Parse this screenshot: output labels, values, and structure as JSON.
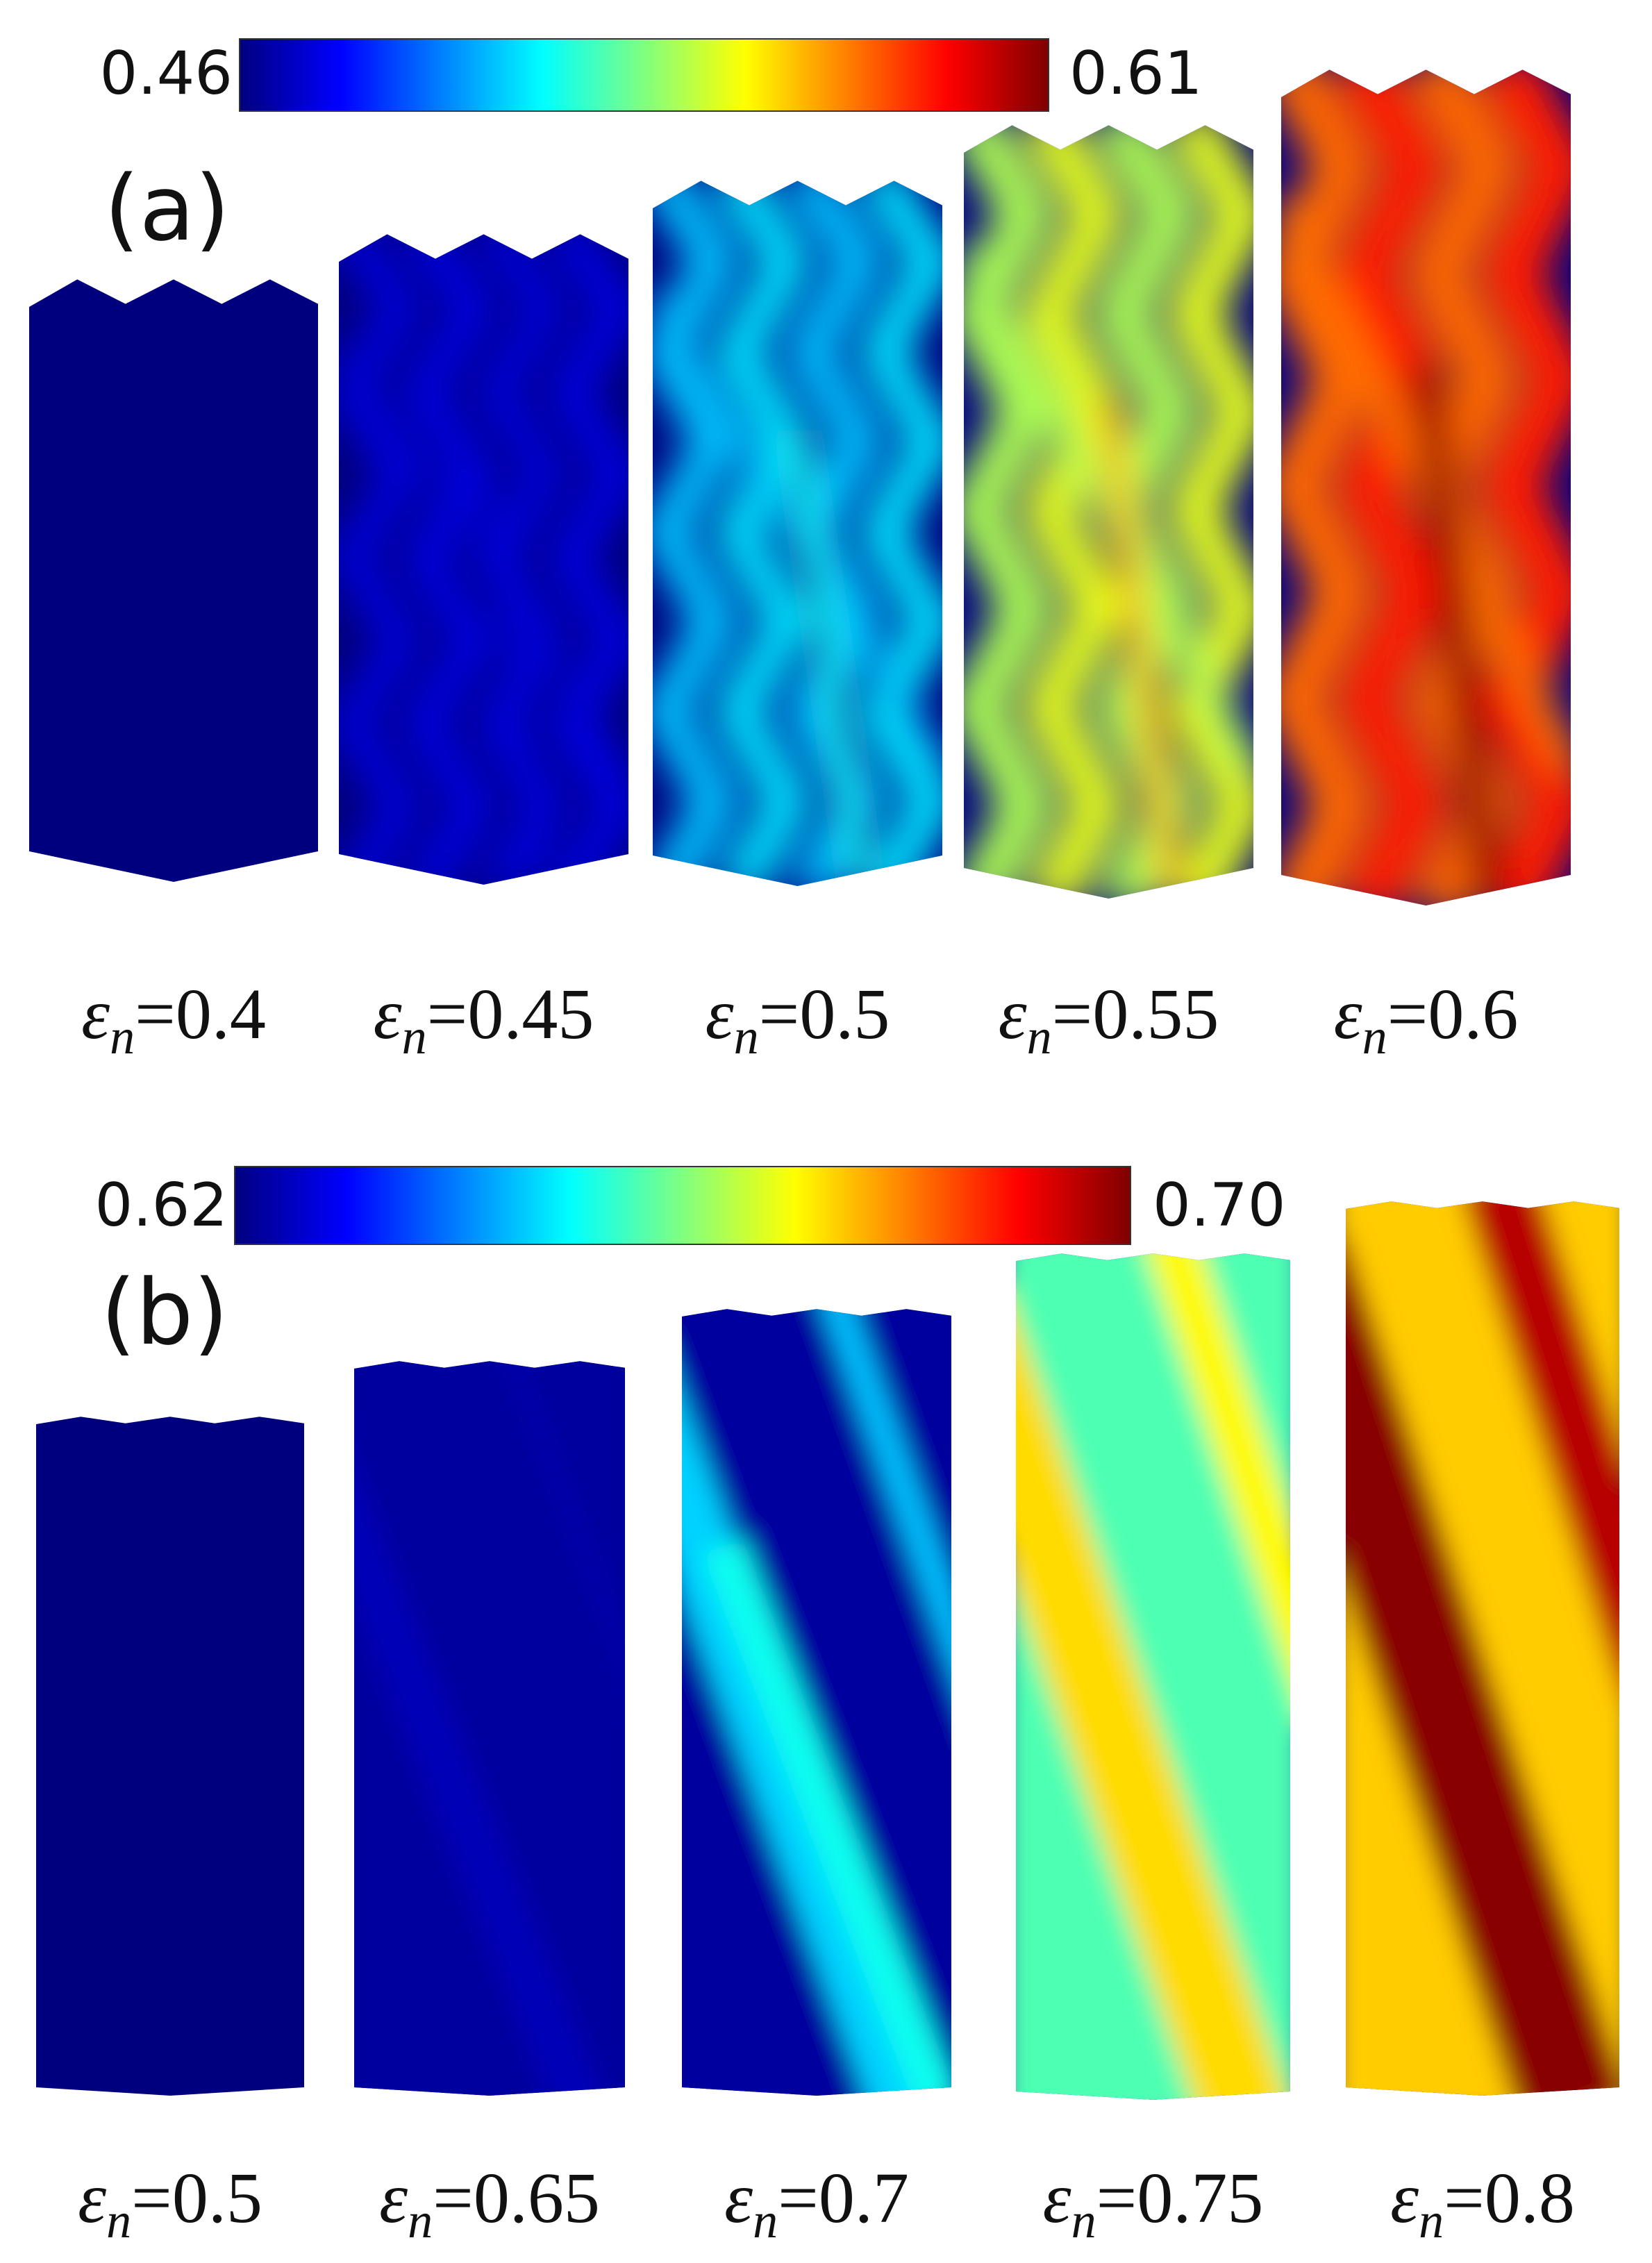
{
  "colormap": [
    "#00007f",
    "#0000ff",
    "#0080ff",
    "#00ffff",
    "#80ff80",
    "#ffff00",
    "#ff8000",
    "#ff0000",
    "#7f0000"
  ],
  "panel_a": {
    "label": "(a)",
    "colorbar": {
      "min": "0.46",
      "max": "0.61"
    },
    "specimens": [
      {
        "eps": "0.4",
        "level": 0.0
      },
      {
        "eps": "0.45",
        "level": 0.1
      },
      {
        "eps": "0.5",
        "level": 0.35
      },
      {
        "eps": "0.55",
        "level": 0.6
      },
      {
        "eps": "0.6",
        "level": 0.85
      }
    ]
  },
  "panel_b": {
    "label": "(b)",
    "colorbar": {
      "min": "0.62",
      "max": "0.70"
    },
    "specimens": [
      {
        "eps": "0.5",
        "level": 0.0
      },
      {
        "eps": "0.65",
        "level": 0.05
      },
      {
        "eps": "0.7",
        "level": 0.3
      },
      {
        "eps": "0.75",
        "level": 0.6
      },
      {
        "eps": "0.8",
        "level": 0.9
      }
    ]
  },
  "symbol": {
    "var": "ε",
    "sub": "n",
    "eq": "="
  }
}
